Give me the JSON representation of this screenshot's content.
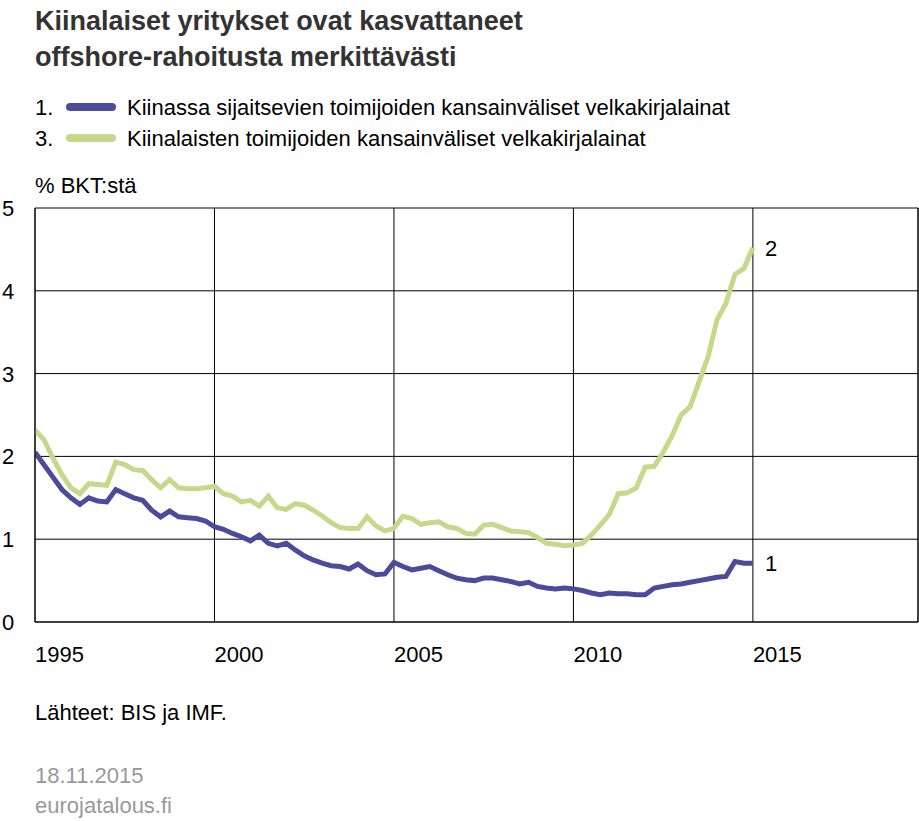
{
  "chart_data": {
    "type": "line",
    "title": "Kiinalaiset yritykset ovat kasvattaneet\noffshore-rahoitusta merkittävästi",
    "y_label": "% BKT:stä",
    "source": "Lähteet: BIS ja IMF.",
    "date": "18.11.2015",
    "site": "eurojatalous.fi",
    "x": [
      1995,
      1995.25,
      1995.5,
      1995.75,
      1996,
      1996.25,
      1996.5,
      1996.75,
      1997,
      1997.25,
      1997.5,
      1997.75,
      1998,
      1998.25,
      1998.5,
      1998.75,
      1999,
      1999.25,
      1999.5,
      1999.75,
      2000,
      2000.25,
      2000.5,
      2000.75,
      2001,
      2001.25,
      2001.5,
      2001.75,
      2002,
      2002.25,
      2002.5,
      2002.75,
      2003,
      2003.25,
      2003.5,
      2003.75,
      2004,
      2004.25,
      2004.5,
      2004.75,
      2005,
      2005.25,
      2005.5,
      2005.75,
      2006,
      2006.25,
      2006.5,
      2006.75,
      2007,
      2007.25,
      2007.5,
      2007.75,
      2008,
      2008.25,
      2008.5,
      2008.75,
      2009,
      2009.25,
      2009.5,
      2009.75,
      2010,
      2010.25,
      2010.5,
      2010.75,
      2011,
      2011.25,
      2011.5,
      2011.75,
      2012,
      2012.25,
      2012.5,
      2012.75,
      2013,
      2013.25,
      2013.5,
      2013.75,
      2014,
      2014.25,
      2014.5,
      2014.75,
      2015
    ],
    "series": [
      {
        "name": "Kiinassa sijaitsevien toimijoiden kansainväliset velkakirjalainat",
        "legend_number": "1.",
        "label": "1",
        "color": "#4b4b9b",
        "values": [
          2.05,
          1.9,
          1.75,
          1.6,
          1.5,
          1.42,
          1.5,
          1.46,
          1.45,
          1.6,
          1.55,
          1.5,
          1.47,
          1.35,
          1.27,
          1.34,
          1.27,
          1.26,
          1.25,
          1.22,
          1.15,
          1.12,
          1.07,
          1.03,
          0.98,
          1.05,
          0.95,
          0.92,
          0.95,
          0.87,
          0.8,
          0.75,
          0.71,
          0.68,
          0.67,
          0.64,
          0.7,
          0.62,
          0.57,
          0.58,
          0.72,
          0.67,
          0.63,
          0.65,
          0.67,
          0.62,
          0.57,
          0.53,
          0.51,
          0.5,
          0.53,
          0.53,
          0.51,
          0.49,
          0.46,
          0.48,
          0.43,
          0.41,
          0.4,
          0.41,
          0.4,
          0.38,
          0.35,
          0.33,
          0.35,
          0.34,
          0.34,
          0.33,
          0.33,
          0.41,
          0.43,
          0.45,
          0.46,
          0.48,
          0.5,
          0.52,
          0.54,
          0.55,
          0.73,
          0.71,
          0.71
        ]
      },
      {
        "name": "Kiinalaisten toimijoiden kansainväliset velkakirjalainat",
        "legend_number": "3.",
        "label": "2",
        "color": "#c5d98c",
        "values": [
          2.32,
          2.2,
          1.98,
          1.78,
          1.62,
          1.55,
          1.67,
          1.66,
          1.65,
          1.93,
          1.9,
          1.84,
          1.83,
          1.72,
          1.62,
          1.72,
          1.62,
          1.61,
          1.61,
          1.62,
          1.64,
          1.55,
          1.52,
          1.45,
          1.47,
          1.4,
          1.52,
          1.38,
          1.36,
          1.43,
          1.41,
          1.35,
          1.28,
          1.2,
          1.14,
          1.13,
          1.13,
          1.27,
          1.16,
          1.1,
          1.13,
          1.28,
          1.25,
          1.18,
          1.2,
          1.21,
          1.15,
          1.13,
          1.07,
          1.06,
          1.17,
          1.18,
          1.14,
          1.1,
          1.09,
          1.08,
          1.02,
          0.95,
          0.94,
          0.92,
          0.93,
          0.95,
          1.05,
          1.17,
          1.3,
          1.55,
          1.56,
          1.62,
          1.87,
          1.88,
          2.05,
          2.25,
          2.5,
          2.6,
          2.9,
          3.2,
          3.65,
          3.85,
          4.2,
          4.27,
          4.52
        ]
      }
    ],
    "xlim": [
      1995,
      2019.6
    ],
    "xticks": [
      1995,
      2000,
      2005,
      2010,
      2015
    ],
    "ylim": [
      0,
      5
    ],
    "yticks": [
      0,
      1,
      2,
      3,
      4,
      5
    ],
    "grid": true
  }
}
